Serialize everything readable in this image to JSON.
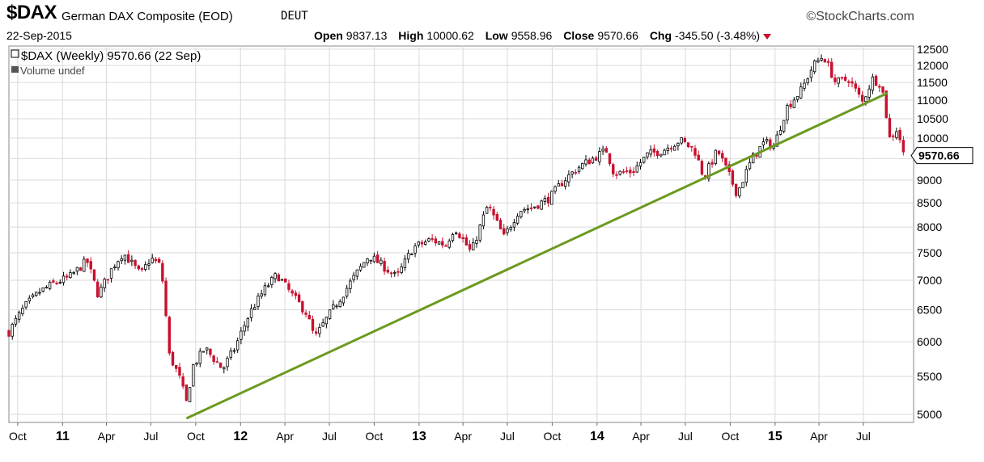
{
  "header": {
    "symbol": "$DAX",
    "name": "German DAX Composite (EOD)",
    "exchange": "DEUT",
    "brand": "StockCharts.com",
    "date": "22-Sep-2015",
    "open_label": "Open",
    "open": "9837.13",
    "high_label": "High",
    "high": "10000.62",
    "low_label": "Low",
    "low": "9558.96",
    "close_label": "Close",
    "close": "9570.66",
    "chg_label": "Chg",
    "chg": "-345.50 (-3.48%)"
  },
  "legend": {
    "price": "$DAX (Weekly) 9570.66 (22 Sep)",
    "volume": "Volume undef"
  },
  "colors": {
    "up": "#000000",
    "down": "#c8102e",
    "trendline": "#6a9a1f",
    "grid": "#d9d9d9"
  },
  "chart_data": {
    "type": "candlestick",
    "scale": "log",
    "ylim": [
      4900,
      12600
    ],
    "y_ticks": [
      5000,
      5500,
      6000,
      6500,
      7000,
      7500,
      8000,
      8500,
      9000,
      9500,
      10000,
      10500,
      11000,
      11500,
      12000,
      12500
    ],
    "x_range": [
      "2010-09-13",
      "2015-10-12"
    ],
    "x_ticks": [
      {
        "date": "2010-10-01",
        "label": "Oct",
        "bold": false
      },
      {
        "date": "2011-01-01",
        "label": "11",
        "bold": true
      },
      {
        "date": "2011-04-01",
        "label": "Apr",
        "bold": false
      },
      {
        "date": "2011-07-01",
        "label": "Jul",
        "bold": false
      },
      {
        "date": "2011-10-01",
        "label": "Oct",
        "bold": false
      },
      {
        "date": "2012-01-01",
        "label": "12",
        "bold": true
      },
      {
        "date": "2012-04-01",
        "label": "Apr",
        "bold": false
      },
      {
        "date": "2012-07-01",
        "label": "Jul",
        "bold": false
      },
      {
        "date": "2012-10-01",
        "label": "Oct",
        "bold": false
      },
      {
        "date": "2013-01-01",
        "label": "13",
        "bold": true
      },
      {
        "date": "2013-04-01",
        "label": "Apr",
        "bold": false
      },
      {
        "date": "2013-07-01",
        "label": "Jul",
        "bold": false
      },
      {
        "date": "2013-10-01",
        "label": "Oct",
        "bold": false
      },
      {
        "date": "2014-01-01",
        "label": "14",
        "bold": true
      },
      {
        "date": "2014-04-01",
        "label": "Apr",
        "bold": false
      },
      {
        "date": "2014-07-01",
        "label": "Jul",
        "bold": false
      },
      {
        "date": "2014-10-01",
        "label": "Oct",
        "bold": false
      },
      {
        "date": "2015-01-01",
        "label": "15",
        "bold": true
      },
      {
        "date": "2015-04-01",
        "label": "Apr",
        "bold": false
      },
      {
        "date": "2015-07-01",
        "label": "Jul",
        "bold": false
      }
    ],
    "close_path": [
      [
        "2010-09-13",
        6150
      ],
      [
        "2010-10-15",
        6550
      ],
      [
        "2010-11-15",
        6800
      ],
      [
        "2010-12-15",
        6950
      ],
      [
        "2011-01-15",
        7050
      ],
      [
        "2011-02-20",
        7350
      ],
      [
        "2011-03-15",
        6750
      ],
      [
        "2011-04-15",
        7250
      ],
      [
        "2011-05-05",
        7500
      ],
      [
        "2011-06-10",
        7100
      ],
      [
        "2011-07-01",
        7400
      ],
      [
        "2011-07-22",
        7250
      ],
      [
        "2011-08-08",
        5800
      ],
      [
        "2011-08-28",
        5500
      ],
      [
        "2011-09-12",
        5150
      ],
      [
        "2011-09-26",
        5650
      ],
      [
        "2011-10-20",
        5900
      ],
      [
        "2011-11-25",
        5600
      ],
      [
        "2011-12-20",
        5900
      ],
      [
        "2012-01-20",
        6450
      ],
      [
        "2012-02-20",
        6850
      ],
      [
        "2012-03-16",
        7100
      ],
      [
        "2012-04-15",
        6750
      ],
      [
        "2012-05-15",
        6450
      ],
      [
        "2012-06-01",
        6050
      ],
      [
        "2012-06-29",
        6400
      ],
      [
        "2012-08-01",
        6800
      ],
      [
        "2012-09-20",
        7450
      ],
      [
        "2012-10-20",
        7250
      ],
      [
        "2012-11-16",
        7050
      ],
      [
        "2012-12-20",
        7600
      ],
      [
        "2013-01-25",
        7750
      ],
      [
        "2013-02-25",
        7650
      ],
      [
        "2013-03-15",
        8000
      ],
      [
        "2013-04-18",
        7500
      ],
      [
        "2013-05-22",
        8450
      ],
      [
        "2013-06-24",
        7800
      ],
      [
        "2013-07-25",
        8350
      ],
      [
        "2013-08-20",
        8400
      ],
      [
        "2013-09-25",
        8600
      ],
      [
        "2013-10-25",
        9000
      ],
      [
        "2013-11-25",
        9300
      ],
      [
        "2014-01-20",
        9700
      ],
      [
        "2014-02-05",
        9150
      ],
      [
        "2014-03-15",
        9200
      ],
      [
        "2014-04-15",
        9600
      ],
      [
        "2014-05-15",
        9700
      ],
      [
        "2014-06-20",
        9950
      ],
      [
        "2014-07-20",
        9700
      ],
      [
        "2014-08-08",
        9050
      ],
      [
        "2014-09-05",
        9700
      ],
      [
        "2014-10-15",
        8700
      ],
      [
        "2014-11-15",
        9500
      ],
      [
        "2014-12-10",
        9900
      ],
      [
        "2014-12-30",
        9800
      ],
      [
        "2015-01-25",
        10800
      ],
      [
        "2015-02-25",
        11300
      ],
      [
        "2015-03-20",
        12000
      ],
      [
        "2015-04-10",
        12300
      ],
      [
        "2015-05-05",
        11500
      ],
      [
        "2015-06-01",
        11600
      ],
      [
        "2015-06-29",
        10950
      ],
      [
        "2015-07-20",
        11600
      ],
      [
        "2015-08-07",
        11450
      ],
      [
        "2015-08-24",
        10000
      ],
      [
        "2015-09-09",
        10250
      ],
      [
        "2015-09-22",
        9570.66
      ]
    ],
    "trendline": [
      [
        "2011-09-12",
        4950
      ],
      [
        "2015-08-20",
        11200
      ]
    ],
    "last_close_label": "9570.66"
  }
}
